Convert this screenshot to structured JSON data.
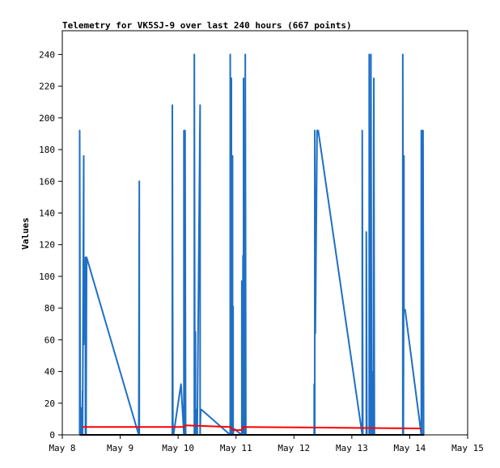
{
  "chart_data": {
    "type": "line",
    "title": "Telemetry for VK5SJ-9 over last 240 hours (667 points)",
    "xlabel": "",
    "ylabel": "Values",
    "x_tick_labels": [
      "May 8",
      "May 9",
      "May 10",
      "May 11",
      "May 12",
      "May 13",
      "May 14",
      "May 15"
    ],
    "xlim": [
      8.0,
      15.0
    ],
    "ylim": [
      0,
      255
    ],
    "y_ticks": [
      0,
      20,
      40,
      60,
      80,
      100,
      120,
      140,
      160,
      180,
      200,
      220,
      240
    ],
    "grid": false,
    "colors": {
      "series_blue": "#1f6fc5",
      "series_red": "#ff0000",
      "series_black": "#000000"
    },
    "series": [
      {
        "color": "#1f6fc5",
        "x": [
          8.3,
          8.3,
          8.31,
          8.32,
          8.32,
          8.33,
          8.34,
          8.35,
          8.35,
          8.37,
          8.37,
          8.4,
          8.4,
          8.41,
          8.41,
          8.42,
          9.32,
          9.33,
          9.33,
          9.35,
          9.9,
          9.9,
          9.91,
          9.92,
          10.05,
          10.1,
          10.1,
          10.12,
          10.12,
          10.13,
          10.28,
          10.28,
          10.29,
          10.3,
          10.3,
          10.32,
          10.33,
          10.38,
          10.38,
          10.39,
          10.4,
          10.9,
          10.9,
          10.91,
          10.92,
          10.92,
          10.94,
          10.94,
          10.95,
          10.95,
          10.96,
          11.1,
          11.1,
          11.12,
          11.12,
          11.13,
          11.13,
          11.14,
          11.14,
          11.16,
          11.16,
          11.17,
          12.35,
          12.35,
          12.36,
          12.36,
          12.37,
          12.4,
          12.42,
          13.18,
          13.18,
          13.19,
          13.2,
          13.25,
          13.25,
          13.26,
          13.3,
          13.3,
          13.31,
          13.31,
          13.33,
          13.33,
          13.34,
          13.36,
          13.36,
          13.37,
          13.38,
          13.39,
          13.4,
          13.88,
          13.88,
          13.89,
          13.9,
          13.9,
          13.92,
          14.2,
          14.2,
          14.21,
          14.22,
          14.23,
          14.24
        ],
        "y": [
          0,
          192,
          0,
          17,
          0,
          16,
          0,
          28,
          0,
          176,
          57,
          112,
          0,
          112,
          0,
          112,
          0,
          160,
          0,
          0,
          0,
          208,
          0,
          0,
          32,
          0,
          192,
          0,
          192,
          0,
          0,
          240,
          0,
          65,
          0,
          16,
          0,
          208,
          0,
          16,
          16,
          0,
          240,
          0,
          225,
          0,
          176,
          0,
          81,
          0,
          4,
          0,
          97,
          0,
          113,
          0,
          225,
          0,
          97,
          0,
          240,
          0,
          0,
          32,
          0,
          192,
          64,
          192,
          192,
          0,
          192,
          0,
          0,
          0,
          128,
          0,
          0,
          240,
          0,
          128,
          0,
          240,
          24,
          0,
          40,
          0,
          225,
          0,
          0,
          0,
          240,
          0,
          176,
          79,
          79,
          0,
          192,
          0,
          192,
          192,
          0
        ]
      },
      {
        "color": "#ff0000",
        "x": [
          8.35,
          10.1,
          10.12,
          10.9,
          10.95,
          10.97,
          11.1,
          11.12,
          14.2
        ],
        "y": [
          5,
          5,
          6,
          5,
          3,
          3,
          3,
          5,
          4
        ]
      },
      {
        "color": "#000000",
        "x": [
          8.3,
          14.25
        ],
        "y": [
          0,
          0
        ]
      }
    ]
  }
}
